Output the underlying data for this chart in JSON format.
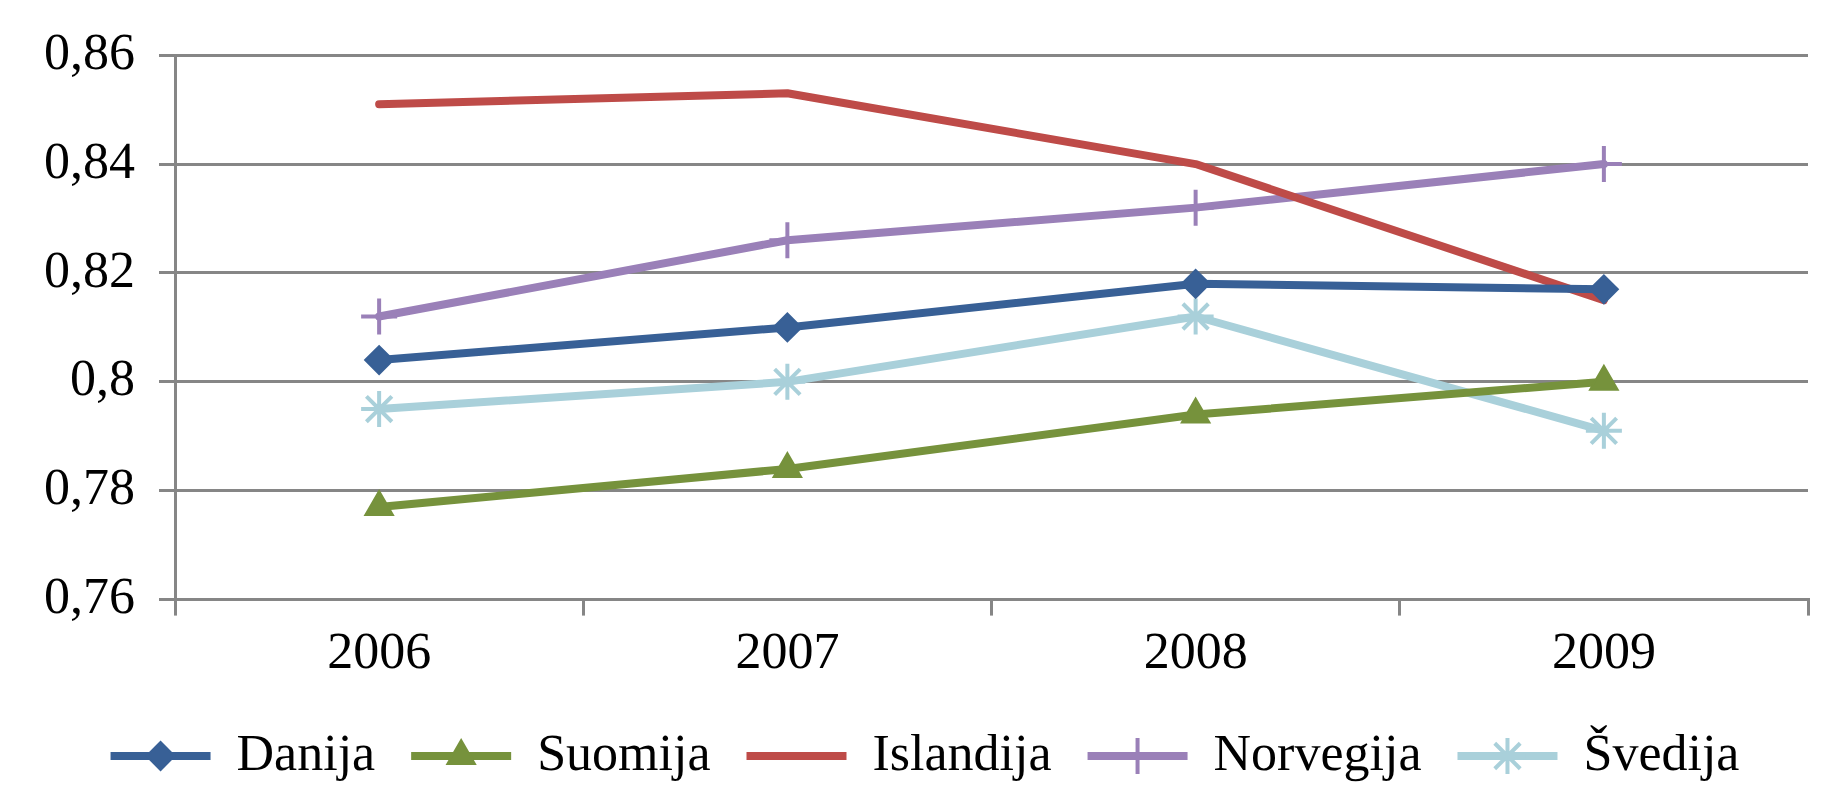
{
  "chart_data": {
    "type": "line",
    "categories": [
      "2006",
      "2007",
      "2008",
      "2009"
    ],
    "series": [
      {
        "name": "Danija",
        "color": "#386096",
        "marker": "diamond",
        "values": [
          0.804,
          0.81,
          0.818,
          0.817
        ]
      },
      {
        "name": "Suomija",
        "color": "#76923c",
        "marker": "triangle",
        "values": [
          0.777,
          0.784,
          0.794,
          0.8
        ]
      },
      {
        "name": "Islandija",
        "color": "#be4b48",
        "marker": "none",
        "values": [
          0.851,
          0.853,
          0.84,
          0.815
        ]
      },
      {
        "name": "Norvegija",
        "color": "#9a80b8",
        "marker": "cross",
        "values": [
          0.812,
          0.826,
          0.832,
          0.84
        ]
      },
      {
        "name": "Švedija",
        "color": "#a9d0da",
        "marker": "cross",
        "values": [
          0.795,
          0.8,
          0.812,
          0.791
        ]
      }
    ],
    "ylim": [
      0.76,
      0.86
    ],
    "yticks": [
      {
        "value": 0.76,
        "label": "0,76"
      },
      {
        "value": 0.78,
        "label": "0,78"
      },
      {
        "value": 0.8,
        "label": "0,8"
      },
      {
        "value": 0.82,
        "label": "0,82"
      },
      {
        "value": 0.84,
        "label": "0,84"
      },
      {
        "value": 0.86,
        "label": "0,86"
      }
    ],
    "grid": "y",
    "legend": "bottom",
    "line_style": "solid"
  }
}
